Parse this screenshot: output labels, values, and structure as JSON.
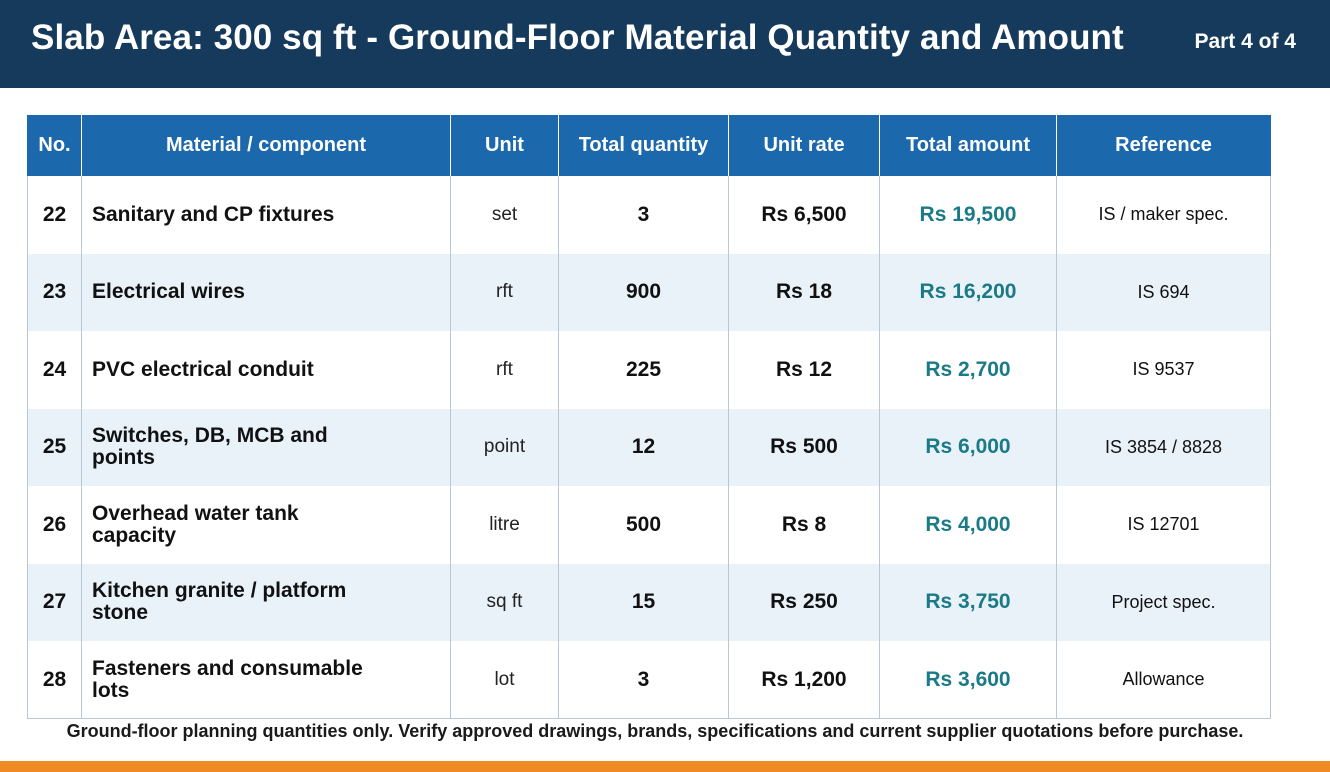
{
  "header": {
    "title": "Slab Area: 300 sq ft - Ground-Floor Material Quantity and Amount",
    "part": "Part 4 of 4"
  },
  "table": {
    "columns": [
      "No.",
      "Material / component",
      "Unit",
      "Total quantity",
      "Unit rate",
      "Total amount",
      "Reference"
    ],
    "rows": [
      {
        "no": "22",
        "material": "Sanitary and CP fixtures",
        "unit": "set",
        "qty": "3",
        "rate": "Rs 6,500",
        "amount": "Rs 19,500",
        "ref": "IS / maker spec."
      },
      {
        "no": "23",
        "material": "Electrical wires",
        "unit": "rft",
        "qty": "900",
        "rate": "Rs 18",
        "amount": "Rs 16,200",
        "ref": "IS 694"
      },
      {
        "no": "24",
        "material": "PVC electrical conduit",
        "unit": "rft",
        "qty": "225",
        "rate": "Rs 12",
        "amount": "Rs 2,700",
        "ref": "IS 9537"
      },
      {
        "no": "25",
        "material": "Switches, DB, MCB and points",
        "unit": "point",
        "qty": "12",
        "rate": "Rs 500",
        "amount": "Rs 6,000",
        "ref": "IS 3854 / 8828"
      },
      {
        "no": "26",
        "material": "Overhead water tank capacity",
        "unit": "litre",
        "qty": "500",
        "rate": "Rs 8",
        "amount": "Rs 4,000",
        "ref": "IS 12701"
      },
      {
        "no": "27",
        "material": "Kitchen granite / platform stone",
        "unit": "sq ft",
        "qty": "15",
        "rate": "Rs 250",
        "amount": "Rs 3,750",
        "ref": "Project spec."
      },
      {
        "no": "28",
        "material": "Fasteners and consumable lots",
        "unit": "lot",
        "qty": "3",
        "rate": "Rs 1,200",
        "amount": "Rs 3,600",
        "ref": "Allowance"
      }
    ]
  },
  "footnote": "Ground-floor planning quantities only. Verify approved drawings, brands, specifications and current supplier quotations before purchase.",
  "colors": {
    "header_bg": "#153a5b",
    "table_header_bg": "#1b68ac",
    "amount_text": "#1a7a86",
    "alt_row_bg": "#e9f2f9",
    "bottom_bar": "#f08a24"
  }
}
